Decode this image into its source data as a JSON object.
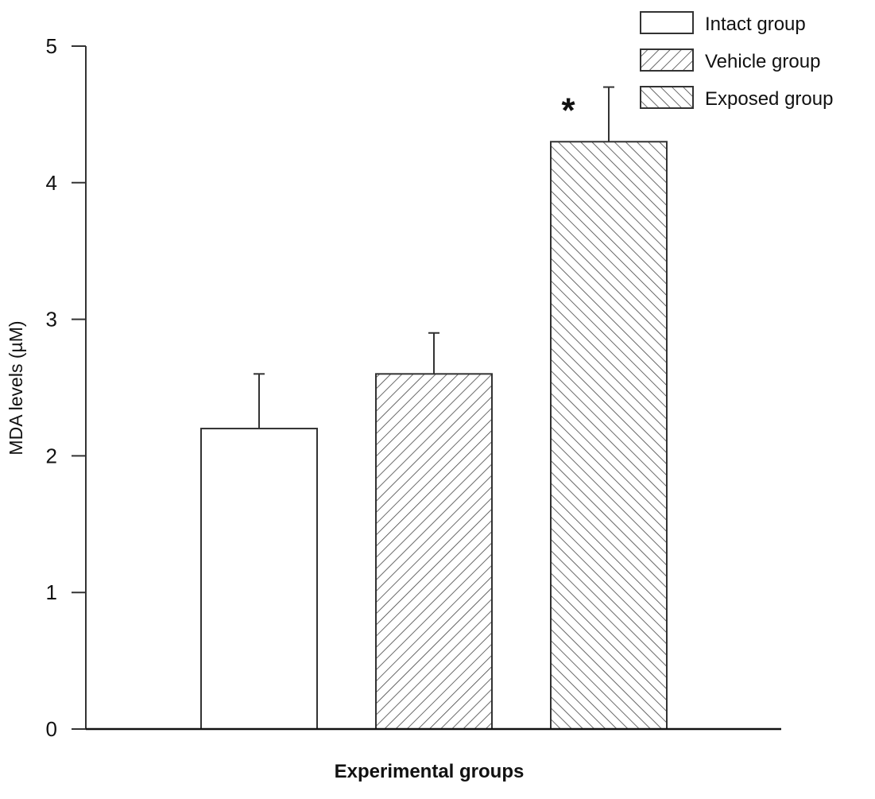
{
  "chart_data": {
    "type": "bar",
    "title": "",
    "xlabel": "Experimental groups",
    "ylabel": "MDA levels (µM)",
    "ylim": [
      0,
      5
    ],
    "yticks": [
      "0",
      "1",
      "2",
      "3",
      "4",
      "5"
    ],
    "grid": false,
    "legend_position": "top-right",
    "categories": [
      "Intact group",
      "Vehicle group",
      "Exposed group"
    ],
    "values": [
      2.2,
      2.6,
      4.3
    ],
    "error_upper": [
      2.6,
      2.9,
      4.7
    ],
    "fill_patterns": [
      "none",
      "hatch-forward",
      "hatch-backward"
    ],
    "annotations": [
      {
        "category": "Exposed group",
        "text": "*"
      }
    ],
    "colors": {
      "edge": "#222222",
      "fill": "#ffffff",
      "hatch": "#444444"
    }
  }
}
